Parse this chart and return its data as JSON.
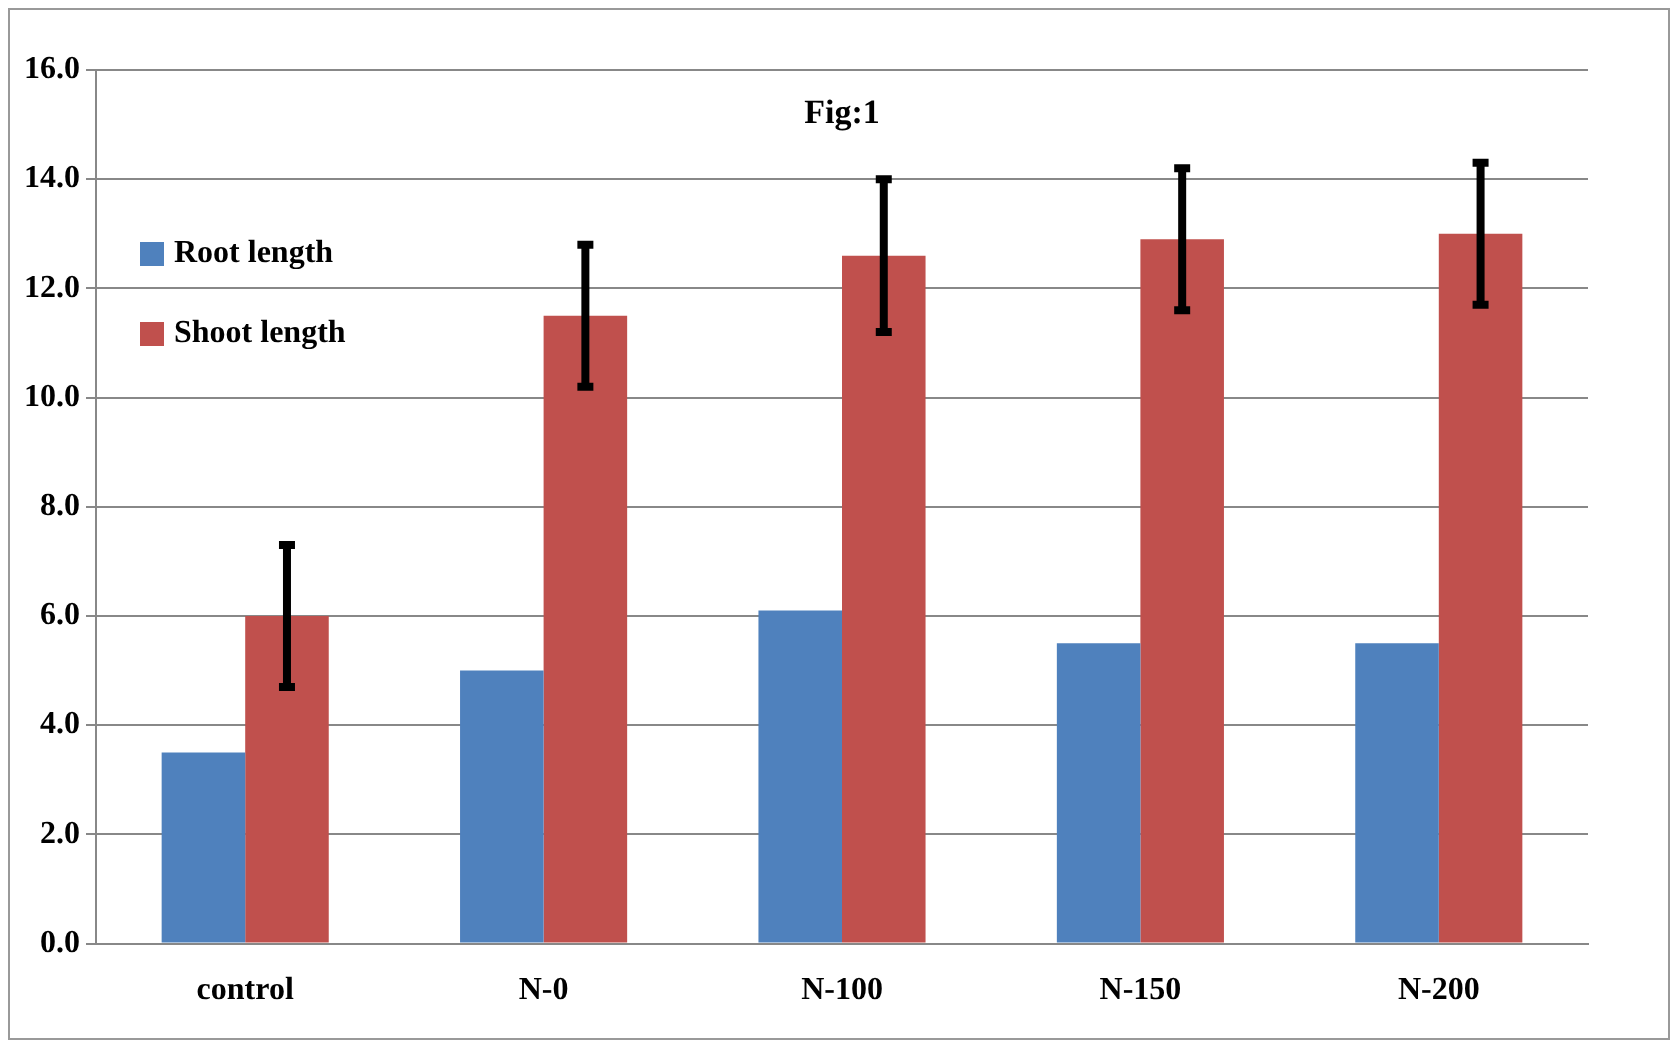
{
  "chart_data": {
    "type": "bar",
    "title": "Fig:1",
    "categories": [
      "control",
      "N-0",
      "N-100",
      "N-150",
      "N-200"
    ],
    "series": [
      {
        "name": "Root length",
        "color": "#4f81bd",
        "values": [
          3.5,
          5.0,
          6.1,
          5.5,
          5.5
        ]
      },
      {
        "name": "Shoot length",
        "color": "#c0504d",
        "values": [
          6.0,
          11.5,
          12.6,
          12.9,
          13.0
        ],
        "errors": [
          1.3,
          1.3,
          1.4,
          1.3,
          1.3
        ]
      }
    ],
    "ylim": [
      0,
      16
    ],
    "yticks": [
      {
        "value": 0,
        "label": "0.0"
      },
      {
        "value": 2,
        "label": "2.0"
      },
      {
        "value": 4,
        "label": "4.0"
      },
      {
        "value": 6,
        "label": "6.0"
      },
      {
        "value": 8,
        "label": "8.0"
      },
      {
        "value": 10,
        "label": "10.0"
      },
      {
        "value": 12,
        "label": "12.0"
      },
      {
        "value": 14,
        "label": "14.0"
      },
      {
        "value": 16,
        "label": "16.0"
      }
    ],
    "grid": "y",
    "legend": "top left"
  }
}
